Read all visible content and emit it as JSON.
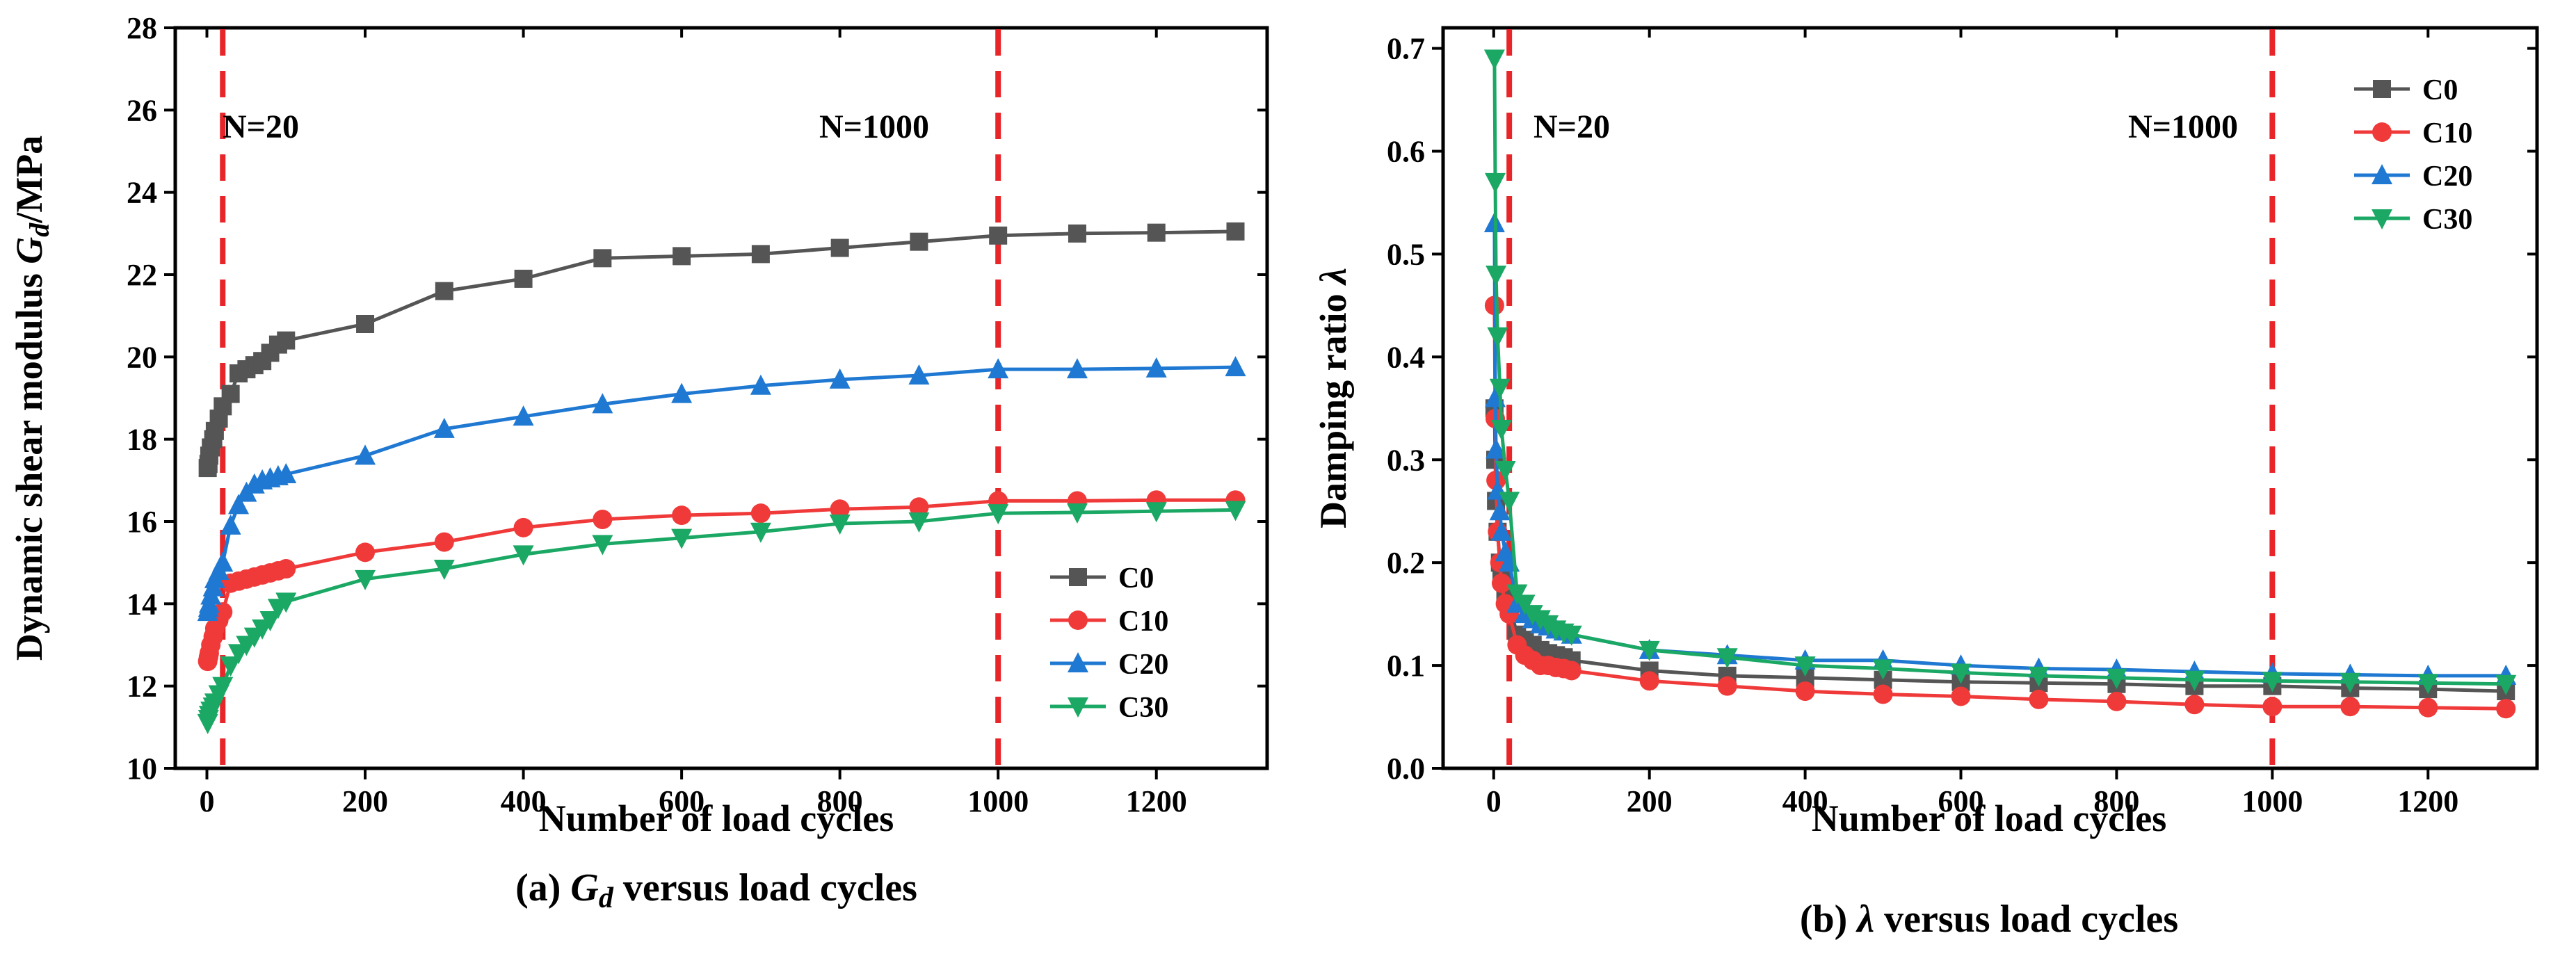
{
  "series_styles": [
    {
      "name": "C0",
      "color": "#555555",
      "marker": "square"
    },
    {
      "name": "C10",
      "color": "#f03a3a",
      "marker": "circle"
    },
    {
      "name": "C20",
      "color": "#1f78d1",
      "marker": "triangle-up"
    },
    {
      "name": "C30",
      "color": "#1aa864",
      "marker": "triangle-down"
    }
  ],
  "chart_data": [
    {
      "type": "line",
      "caption": {
        "prefix": "(a)",
        "symbol": "G",
        "subscript": "d",
        "rest": "versus load cycles"
      },
      "xlabel": "Number of load cycles",
      "ylabel_text": "Dynamic shear modulus",
      "ylabel_symbol": "G",
      "ylabel_subscript": "d",
      "ylabel_unit": "/MPa",
      "xlim": [
        -40,
        1340
      ],
      "ylim": [
        10,
        28
      ],
      "xticks": [
        "0",
        "200",
        "400",
        "600",
        "800",
        "1000",
        "1200"
      ],
      "yticks": [
        "10",
        "12",
        "14",
        "16",
        "18",
        "20",
        "22",
        "24",
        "26",
        "28"
      ],
      "vlines": [
        {
          "x": 20,
          "label": "N=20"
        },
        {
          "x": 1000,
          "label": "N=1000"
        }
      ],
      "legend_position": "lower-right",
      "x": [
        1,
        2,
        3,
        5,
        8,
        10,
        15,
        20,
        30,
        40,
        50,
        60,
        70,
        80,
        90,
        100,
        200,
        300,
        400,
        500,
        600,
        700,
        800,
        900,
        1000,
        1100,
        1200,
        1300
      ],
      "series": [
        {
          "name": "C0",
          "values": [
            17.3,
            17.4,
            17.6,
            17.8,
            18.0,
            18.2,
            18.5,
            18.8,
            19.1,
            19.6,
            19.7,
            19.8,
            19.9,
            20.1,
            20.3,
            20.4,
            20.8,
            21.6,
            21.9,
            22.4,
            22.45,
            22.5,
            22.65,
            22.8,
            22.95,
            23.0,
            23.02,
            23.05
          ]
        },
        {
          "name": "C10",
          "values": [
            12.6,
            12.7,
            12.8,
            13.0,
            13.2,
            13.4,
            13.6,
            13.8,
            14.5,
            14.55,
            14.6,
            14.65,
            14.7,
            14.75,
            14.8,
            14.85,
            15.25,
            15.5,
            15.85,
            16.05,
            16.15,
            16.2,
            16.3,
            16.35,
            16.5,
            16.5,
            16.52,
            16.52
          ]
        },
        {
          "name": "C20",
          "values": [
            13.8,
            13.9,
            14.0,
            14.2,
            14.4,
            14.6,
            14.8,
            15.0,
            15.9,
            16.4,
            16.7,
            16.9,
            17.0,
            17.05,
            17.1,
            17.15,
            17.6,
            18.25,
            18.55,
            18.85,
            19.1,
            19.3,
            19.45,
            19.55,
            19.7,
            19.7,
            19.72,
            19.75
          ]
        },
        {
          "name": "C30",
          "values": [
            11.1,
            11.2,
            11.3,
            11.4,
            11.5,
            11.6,
            11.8,
            12.0,
            12.5,
            12.8,
            13.0,
            13.2,
            13.4,
            13.6,
            13.9,
            14.05,
            14.6,
            14.85,
            15.2,
            15.45,
            15.6,
            15.75,
            15.95,
            16.0,
            16.2,
            16.22,
            16.25,
            16.28
          ]
        }
      ]
    },
    {
      "type": "line",
      "caption": {
        "prefix": "(b)",
        "symbol": "λ",
        "subscript": "",
        "rest": "versus load cycles"
      },
      "xlabel": "Number of load cycles",
      "ylabel_text": "Damping ratio",
      "ylabel_symbol": "λ",
      "ylabel_subscript": "",
      "ylabel_unit": "",
      "xlim": [
        -65,
        1340
      ],
      "ylim": [
        0,
        0.72
      ],
      "xticks": [
        "0",
        "200",
        "400",
        "600",
        "800",
        "1000",
        "1200"
      ],
      "yticks": [
        "0.0",
        "0.1",
        "0.2",
        "0.3",
        "0.4",
        "0.5",
        "0.6",
        "0.7"
      ],
      "vlines": [
        {
          "x": 20,
          "label": "N=20"
        },
        {
          "x": 1000,
          "label": "N=1000"
        }
      ],
      "legend_position": "top-right",
      "x": [
        1,
        2,
        3,
        5,
        8,
        10,
        15,
        20,
        30,
        40,
        50,
        60,
        70,
        80,
        90,
        100,
        200,
        300,
        400,
        500,
        600,
        700,
        800,
        900,
        1000,
        1100,
        1200,
        1300
      ],
      "series": [
        {
          "name": "C0",
          "values": [
            0.35,
            0.3,
            0.26,
            0.23,
            0.2,
            0.19,
            0.17,
            0.16,
            0.13,
            0.125,
            0.12,
            0.115,
            0.112,
            0.11,
            0.108,
            0.105,
            0.095,
            0.09,
            0.088,
            0.086,
            0.084,
            0.083,
            0.082,
            0.08,
            0.08,
            0.078,
            0.077,
            0.075
          ]
        },
        {
          "name": "C10",
          "values": [
            0.45,
            0.34,
            0.28,
            0.23,
            0.2,
            0.18,
            0.16,
            0.15,
            0.12,
            0.11,
            0.105,
            0.1,
            0.1,
            0.098,
            0.097,
            0.095,
            0.085,
            0.08,
            0.075,
            0.072,
            0.07,
            0.067,
            0.065,
            0.062,
            0.06,
            0.06,
            0.059,
            0.058
          ]
        },
        {
          "name": "C20",
          "values": [
            0.53,
            0.36,
            0.31,
            0.27,
            0.25,
            0.23,
            0.21,
            0.2,
            0.16,
            0.15,
            0.145,
            0.14,
            0.138,
            0.135,
            0.133,
            0.13,
            0.115,
            0.11,
            0.105,
            0.105,
            0.1,
            0.097,
            0.096,
            0.094,
            0.092,
            0.091,
            0.09,
            0.09
          ]
        },
        {
          "name": "C30",
          "values": [
            0.69,
            0.57,
            0.48,
            0.42,
            0.37,
            0.33,
            0.29,
            0.26,
            0.17,
            0.16,
            0.15,
            0.145,
            0.14,
            0.135,
            0.132,
            0.13,
            0.115,
            0.108,
            0.1,
            0.097,
            0.093,
            0.09,
            0.088,
            0.086,
            0.085,
            0.084,
            0.083,
            0.082
          ]
        }
      ]
    }
  ]
}
